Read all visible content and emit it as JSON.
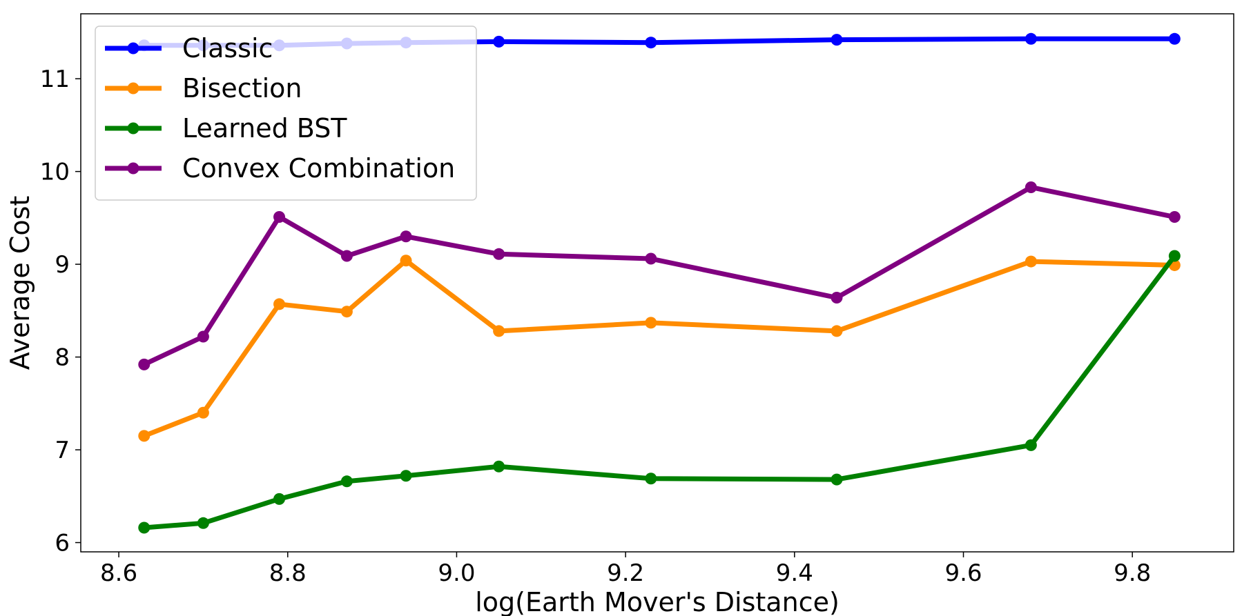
{
  "chart_data": {
    "type": "line",
    "title": "",
    "xlabel": "log(Earth Mover's Distance)",
    "ylabel": "Average Cost",
    "xlim": [
      8.555,
      9.92
    ],
    "ylim": [
      5.9,
      11.7
    ],
    "xticks": [
      "8.6",
      "8.8",
      "9.0",
      "9.2",
      "9.4",
      "9.6",
      "9.8"
    ],
    "yticks": [
      "6",
      "7",
      "8",
      "9",
      "10",
      "11"
    ],
    "grid": false,
    "legend_position": "top-left",
    "x": [
      8.63,
      8.7,
      8.79,
      8.87,
      8.94,
      9.05,
      9.23,
      9.45,
      9.68,
      9.85
    ],
    "series": [
      {
        "name": "Classic",
        "color": "#0000ff",
        "values": [
          11.36,
          11.36,
          11.36,
          11.38,
          11.39,
          11.4,
          11.39,
          11.42,
          11.43,
          11.43
        ]
      },
      {
        "name": "Bisection",
        "color": "#ff8c00",
        "values": [
          7.15,
          7.4,
          8.57,
          8.49,
          9.04,
          8.28,
          8.37,
          8.28,
          9.03,
          8.99
        ]
      },
      {
        "name": "Learned BST",
        "color": "#008000",
        "values": [
          6.16,
          6.21,
          6.47,
          6.66,
          6.72,
          6.82,
          6.69,
          6.68,
          7.05,
          9.09
        ]
      },
      {
        "name": "Convex Combination",
        "color": "#800080",
        "values": [
          7.92,
          8.22,
          9.51,
          9.09,
          9.3,
          9.11,
          9.06,
          8.64,
          9.83,
          9.51
        ]
      }
    ]
  }
}
